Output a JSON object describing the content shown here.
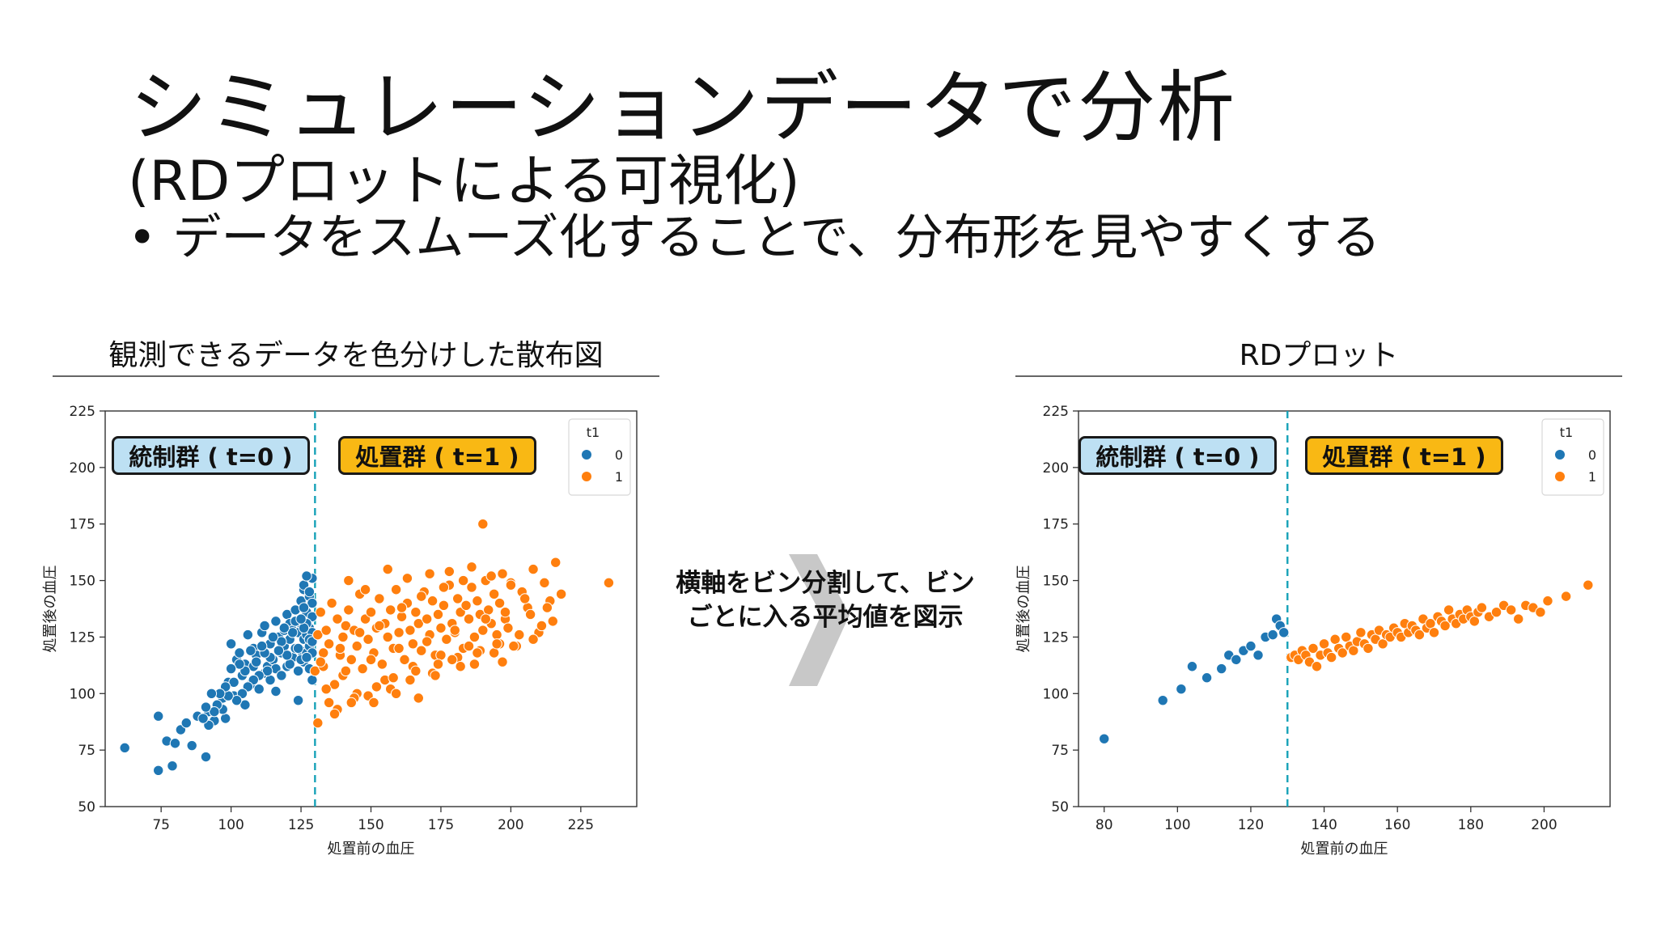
{
  "slide": {
    "title": "シミュレーションデータで分析",
    "subtitle": "(RDプロットによる可視化)",
    "bullet_symbol": "•",
    "bullet": "データをスムーズ化することで、分布形を見やすくする",
    "left_caption": "観測できるデータを色分けした散布図",
    "right_caption": "RDプロット",
    "arrow_text": "横軸をビン分割して、ビンごとに入る平均値を図示"
  },
  "colors": {
    "control": "#1f77b4",
    "treated": "#ff7f0e",
    "cutoff": "#17a2b8",
    "control_label_bg": "#bde0f3",
    "treated_label_bg": "#f9b814"
  },
  "chart_data": [
    {
      "type": "scatter",
      "title": "観測できるデータを色分けした散布図",
      "xlabel": "処置前の血圧",
      "ylabel": "処置後の血圧",
      "xlim": [
        55,
        245
      ],
      "ylim": [
        50,
        225
      ],
      "xticks": [
        75,
        100,
        125,
        150,
        175,
        200,
        225
      ],
      "yticks": [
        50,
        75,
        100,
        125,
        150,
        175,
        200,
        225
      ],
      "cutoff": 130,
      "legend": {
        "title": "t1",
        "entries": [
          "0",
          "1"
        ],
        "position": "top-right"
      },
      "group_labels": [
        "統制群 ( t=0 )",
        "処置群 ( t=1 )"
      ],
      "series": [
        {
          "name": "0",
          "x": [
            62,
            74,
            74,
            77,
            79,
            80,
            82,
            84,
            86,
            88,
            91,
            92,
            94,
            95,
            96,
            97,
            98,
            99,
            100,
            101,
            102,
            103,
            104,
            105,
            105,
            106,
            107,
            108,
            108,
            109,
            110,
            111,
            112,
            112,
            113,
            114,
            114,
            115,
            116,
            116,
            117,
            118,
            118,
            119,
            119,
            120,
            120,
            121,
            121,
            122,
            122,
            123,
            123,
            124,
            124,
            125,
            125,
            125,
            126,
            126,
            126,
            127,
            127,
            127,
            128,
            128,
            128,
            129,
            129,
            129,
            129,
            129,
            128,
            127,
            126,
            125,
            124,
            123,
            122,
            121,
            120,
            119,
            118,
            117,
            116,
            115,
            114,
            113,
            112,
            111,
            110,
            109,
            108,
            107,
            106,
            105,
            104,
            103,
            102,
            101,
            100,
            99,
            98,
            97,
            96,
            95,
            94,
            93,
            92,
            91,
            90,
            126,
            127,
            128,
            129,
            129,
            128,
            127,
            126,
            125,
            124
          ],
          "y": [
            76,
            90,
            66,
            79,
            68,
            78,
            84,
            87,
            77,
            90,
            72,
            92,
            88,
            95,
            94,
            98,
            89,
            105,
            122,
            99,
            115,
            118,
            108,
            113,
            95,
            126,
            104,
            112,
            120,
            117,
            102,
            127,
            109,
            130,
            112,
            122,
            106,
            115,
            132,
            111,
            125,
            118,
            108,
            128,
            121,
            135,
            112,
            124,
            131,
            116,
            128,
            120,
            137,
            127,
            110,
            141,
            119,
            131,
            124,
            146,
            114,
            136,
            126,
            118,
            143,
            129,
            121,
            151,
            134,
            127,
            118,
            140,
            124,
            131,
            138,
            115,
            120,
            132,
            127,
            113,
            117,
            129,
            123,
            119,
            101,
            125,
            116,
            110,
            118,
            121,
            108,
            114,
            106,
            119,
            103,
            110,
            100,
            113,
            97,
            105,
            111,
            99,
            103,
            93,
            100,
            95,
            92,
            100,
            86,
            94,
            89,
            148,
            152,
            145,
            123,
            106,
            111,
            116,
            129,
            133,
            97
          ]
        },
        {
          "name": "1",
          "x": [
            130,
            131,
            132,
            133,
            134,
            135,
            136,
            137,
            138,
            139,
            140,
            141,
            142,
            143,
            144,
            145,
            146,
            147,
            148,
            149,
            150,
            151,
            152,
            153,
            154,
            155,
            156,
            157,
            158,
            159,
            160,
            161,
            162,
            163,
            164,
            165,
            166,
            167,
            168,
            169,
            170,
            171,
            172,
            173,
            174,
            175,
            176,
            177,
            178,
            179,
            180,
            181,
            182,
            183,
            184,
            185,
            186,
            187,
            188,
            189,
            190,
            191,
            192,
            193,
            194,
            195,
            196,
            197,
            198,
            199,
            200,
            202,
            204,
            206,
            208,
            210,
            212,
            214,
            216,
            218,
            235,
            190,
            135,
            133,
            140,
            145,
            150,
            155,
            160,
            165,
            170,
            175,
            180,
            185,
            142,
            148,
            156,
            163,
            171,
            178,
            186,
            193,
            200,
            138,
            144,
            152,
            158,
            166,
            174,
            181,
            189,
            196,
            203,
            211,
            131,
            137,
            143,
            149,
            157,
            164,
            172,
            179,
            187,
            194,
            201,
            208,
            215,
            132,
            139,
            146,
            153,
            161,
            168,
            176,
            183,
            191,
            198,
            205,
            134,
            141,
            151,
            159,
            167,
            173,
            182,
            188,
            195,
            197,
            207,
            213
          ],
          "y": [
            110,
            126,
            136,
            112,
            128,
            122,
            140,
            104,
            133,
            117,
            125,
            130,
            137,
            115,
            128,
            121,
            144,
            111,
            133,
            124,
            136,
            118,
            129,
            142,
            113,
            131,
            125,
            137,
            120,
            146,
            127,
            134,
            115,
            140,
            128,
            122,
            136,
            131,
            119,
            145,
            133,
            126,
            141,
            117,
            135,
            129,
            139,
            124,
            148,
            131,
            127,
            142,
            136,
            120,
            139,
            133,
            147,
            125,
            141,
            135,
            128,
            150,
            137,
            131,
            144,
            126,
            140,
            153,
            133,
            129,
            149,
            121,
            145,
            138,
            155,
            127,
            149,
            141,
            158,
            144,
            149,
            175,
            96,
            118,
            108,
            100,
            115,
            106,
            120,
            112,
            123,
            117,
            128,
            121,
            150,
            146,
            155,
            151,
            153,
            154,
            156,
            152,
            148,
            93,
            98,
            103,
            107,
            110,
            113,
            116,
            119,
            122,
            126,
            130,
            87,
            91,
            96,
            99,
            102,
            106,
            109,
            115,
            113,
            118,
            121,
            124,
            132,
            114,
            120,
            127,
            130,
            138,
            143,
            147,
            150,
            133,
            136,
            142,
            102,
            110,
            96,
            100,
            98,
            108,
            112,
            118,
            122,
            114,
            135,
            138
          ]
        }
      ]
    },
    {
      "type": "scatter",
      "title": "RDプロット",
      "xlabel": "処置前の血圧",
      "ylabel": "処置後の血圧",
      "xlim": [
        73,
        218
      ],
      "ylim": [
        50,
        225
      ],
      "xticks": [
        80,
        100,
        120,
        140,
        160,
        180,
        200
      ],
      "yticks": [
        50,
        75,
        100,
        125,
        150,
        175,
        200,
        225
      ],
      "cutoff": 130,
      "legend": {
        "title": "t1",
        "entries": [
          "0",
          "1"
        ],
        "position": "top-right"
      },
      "group_labels": [
        "統制群 ( t=0 )",
        "処置群 ( t=1 )"
      ],
      "series": [
        {
          "name": "0",
          "x": [
            80,
            96,
            101,
            104,
            108,
            112,
            114,
            116,
            118,
            120,
            122,
            124,
            126,
            127,
            128,
            129
          ],
          "y": [
            80,
            97,
            102,
            112,
            107,
            111,
            117,
            115,
            119,
            121,
            117,
            125,
            126,
            133,
            130,
            127
          ]
        },
        {
          "name": "1",
          "x": [
            131,
            132,
            133,
            134,
            135,
            136,
            137,
            138,
            139,
            140,
            141,
            142,
            143,
            144,
            145,
            146,
            147,
            148,
            149,
            150,
            151,
            152,
            153,
            154,
            155,
            156,
            157,
            158,
            159,
            160,
            161,
            162,
            163,
            164,
            165,
            166,
            167,
            168,
            169,
            170,
            171,
            172,
            173,
            174,
            175,
            176,
            177,
            178,
            179,
            180,
            181,
            182,
            183,
            185,
            187,
            189,
            191,
            193,
            195,
            197,
            199,
            201,
            206,
            212
          ],
          "y": [
            116,
            117,
            115,
            119,
            117,
            114,
            120,
            112,
            117,
            122,
            118,
            116,
            124,
            120,
            118,
            125,
            121,
            119,
            123,
            127,
            122,
            120,
            126,
            124,
            128,
            122,
            126,
            125,
            129,
            127,
            125,
            131,
            127,
            130,
            128,
            126,
            133,
            129,
            131,
            127,
            134,
            132,
            130,
            137,
            133,
            131,
            135,
            133,
            137,
            134,
            132,
            136,
            138,
            134,
            136,
            139,
            137,
            133,
            139,
            138,
            136,
            141,
            143,
            148
          ]
        }
      ]
    }
  ]
}
